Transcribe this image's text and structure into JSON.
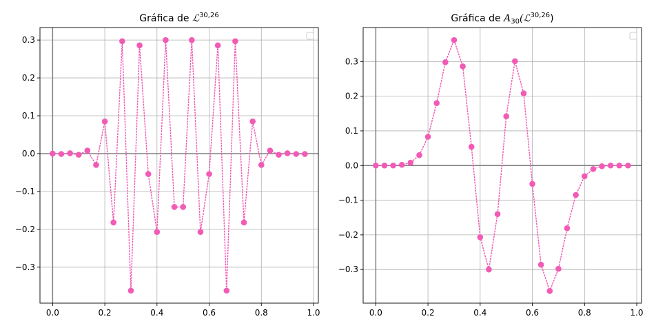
{
  "chart_data": [
    {
      "type": "scatter",
      "title_prefix": "Gráfica de ",
      "title_math": "ℒ",
      "title_sup": "30,26",
      "title_suffix": "",
      "xlim": [
        -0.0485,
        1.0185
      ],
      "ylim": [
        -0.395,
        0.333
      ],
      "xticks": [
        0.0,
        0.2,
        0.4,
        0.6,
        0.8,
        1.0
      ],
      "xtick_labels": [
        "0.0",
        "0.2",
        "0.4",
        "0.6",
        "0.8",
        "1.0"
      ],
      "yticks": [
        -0.3,
        -0.2,
        -0.1,
        0.0,
        0.1,
        0.2,
        0.3
      ],
      "ytick_labels": [
        "−0.3",
        "−0.2",
        "−0.1",
        "0.0",
        "0.1",
        "0.2",
        "0.3"
      ],
      "grid": true,
      "legend": "top-right (empty)",
      "marker_color": "#f15bb5",
      "line_style": "dotted",
      "x": [
        0.0,
        0.0333,
        0.0667,
        0.1,
        0.1333,
        0.1667,
        0.2,
        0.2333,
        0.2667,
        0.3,
        0.3333,
        0.3667,
        0.4,
        0.4333,
        0.4667,
        0.5,
        0.5333,
        0.5667,
        0.6,
        0.6333,
        0.6667,
        0.7,
        0.7333,
        0.7667,
        0.8,
        0.8333,
        0.8667,
        0.9,
        0.9333,
        0.9667
      ],
      "y": [
        0.0,
        -0.001,
        0.001,
        -0.003,
        0.008,
        -0.03,
        0.085,
        -0.182,
        0.297,
        -0.362,
        0.286,
        -0.054,
        -0.207,
        0.3,
        -0.141,
        -0.141,
        0.3,
        -0.207,
        -0.054,
        0.286,
        -0.362,
        0.297,
        -0.182,
        0.085,
        -0.03,
        0.008,
        -0.003,
        0.001,
        -0.001,
        -0.001
      ]
    },
    {
      "type": "scatter",
      "title_prefix": "Gráfica de ",
      "title_math": "A",
      "title_sub": "30",
      "title_open": "(ℒ",
      "title_sup": "30,26",
      "title_suffix": ")",
      "xlim": [
        -0.0485,
        1.0185
      ],
      "ylim": [
        -0.397,
        0.398
      ],
      "xticks": [
        0.0,
        0.2,
        0.4,
        0.6,
        0.8,
        1.0
      ],
      "xtick_labels": [
        "0.0",
        "0.2",
        "0.4",
        "0.6",
        "0.8",
        "1.0"
      ],
      "yticks": [
        -0.3,
        -0.2,
        -0.1,
        0.0,
        0.1,
        0.2,
        0.3
      ],
      "ytick_labels": [
        "−0.3",
        "−0.2",
        "−0.1",
        "0.0",
        "0.1",
        "0.2",
        "0.3"
      ],
      "grid": true,
      "legend": "top-right (empty)",
      "marker_color": "#f15bb5",
      "line_style": "dotted",
      "x": [
        0.0,
        0.0333,
        0.0667,
        0.1,
        0.1333,
        0.1667,
        0.2,
        0.2333,
        0.2667,
        0.3,
        0.3333,
        0.3667,
        0.4,
        0.4333,
        0.4667,
        0.5,
        0.5333,
        0.5667,
        0.6,
        0.6333,
        0.6667,
        0.7,
        0.7333,
        0.7667,
        0.8,
        0.8333,
        0.8667,
        0.9,
        0.9333,
        0.9667
      ],
      "y": [
        0.0,
        0.0,
        0.0,
        0.002,
        0.008,
        0.03,
        0.083,
        0.18,
        0.298,
        0.362,
        0.286,
        0.054,
        -0.207,
        -0.3,
        -0.14,
        0.142,
        0.301,
        0.208,
        -0.053,
        -0.286,
        -0.362,
        -0.298,
        -0.181,
        -0.085,
        -0.031,
        -0.01,
        -0.002,
        0.0,
        0.0,
        0.0
      ]
    }
  ]
}
